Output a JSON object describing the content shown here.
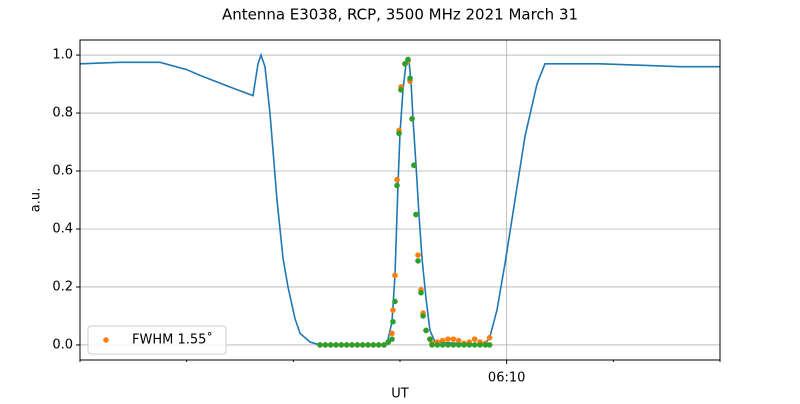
{
  "chart_data": {
    "type": "line",
    "title": "Antenna E3038, RCP, 3500 MHz 2021 March 31",
    "x_label": "UT",
    "y_label": "a.u.",
    "xlim": [
      6,
      12
    ],
    "ylim": [
      -0.052,
      1.052
    ],
    "xticks": [
      {
        "value": 10,
        "label": "06:10"
      }
    ],
    "xminorticks": [
      6,
      7,
      8,
      9,
      11,
      12
    ],
    "yticks": [
      {
        "value": 0,
        "label": "0.0"
      },
      0.2,
      0.4,
      0.6,
      0.8,
      {
        "value": 1,
        "label": "1.0"
      }
    ],
    "grid": true,
    "legend": "lower left",
    "series": [
      {
        "type": "line",
        "color": "#1f77b4",
        "x": [
          6.0,
          6.375,
          6.75,
          7.0,
          7.125,
          7.406,
          7.622,
          7.669,
          7.697,
          7.734,
          7.781,
          7.847,
          7.903,
          7.95,
          8.016,
          8.063,
          8.156,
          8.25,
          8.859,
          8.888,
          8.925,
          8.953,
          8.981,
          9.0,
          9.028,
          9.056,
          9.084,
          9.103,
          9.122,
          9.15,
          9.178,
          9.206,
          9.244,
          9.281,
          9.328,
          9.797,
          9.844,
          9.909,
          9.984,
          10.078,
          10.172,
          10.284,
          10.359,
          10.5,
          10.875,
          11.25,
          11.625,
          12.0
        ],
        "values": [
          0.97,
          0.975,
          0.975,
          0.95,
          0.93,
          0.89,
          0.86,
          0.97,
          1.0,
          0.96,
          0.8,
          0.5,
          0.3,
          0.2,
          0.09,
          0.04,
          0.01,
          0.0,
          0.0,
          0.02,
          0.08,
          0.24,
          0.55,
          0.73,
          0.88,
          0.97,
          0.98,
          0.91,
          0.78,
          0.62,
          0.45,
          0.3,
          0.16,
          0.05,
          0.01,
          0.0,
          0.03,
          0.12,
          0.28,
          0.5,
          0.72,
          0.9,
          0.97,
          0.97,
          0.97,
          0.965,
          0.96,
          0.96
        ]
      },
      {
        "type": "scatter",
        "name": "FWHM 1.55˚",
        "color": "#ff7f0e",
        "x": [
          8.25,
          8.3,
          8.35,
          8.4,
          8.45,
          8.5,
          8.55,
          8.6,
          8.65,
          8.7,
          8.75,
          8.8,
          8.85,
          8.89,
          8.925,
          8.934,
          8.953,
          8.972,
          8.991,
          9.009,
          9.047,
          9.075,
          9.094,
          9.113,
          9.131,
          9.15,
          9.169,
          9.197,
          9.216,
          9.244,
          9.281,
          9.3,
          9.35,
          9.4,
          9.45,
          9.5,
          9.55,
          9.6,
          9.65,
          9.7,
          9.75,
          9.8,
          9.84
        ],
        "values": [
          0,
          0,
          0,
          0,
          0,
          0,
          0,
          0,
          0,
          0,
          0,
          0,
          0,
          0.01,
          0.04,
          0.12,
          0.24,
          0.57,
          0.74,
          0.89,
          0.97,
          0.98,
          0.91,
          0.78,
          0.62,
          0.45,
          0.31,
          0.19,
          0.11,
          0.05,
          0.02,
          0.005,
          0.01,
          0.015,
          0.02,
          0.02,
          0.015,
          0.005,
          0.01,
          0.02,
          0.01,
          0.005,
          0.025
        ]
      },
      {
        "type": "scatter",
        "color": "#2ca02c",
        "x": [
          8.25,
          8.3,
          8.35,
          8.4,
          8.45,
          8.5,
          8.55,
          8.6,
          8.65,
          8.7,
          8.75,
          8.8,
          8.85,
          8.89,
          8.925,
          8.934,
          8.953,
          8.972,
          8.991,
          9.009,
          9.047,
          9.075,
          9.094,
          9.113,
          9.131,
          9.15,
          9.169,
          9.197,
          9.216,
          9.244,
          9.281,
          9.3,
          9.35,
          9.4,
          9.45,
          9.5,
          9.55,
          9.6,
          9.65,
          9.7,
          9.75,
          9.8,
          9.84
        ],
        "values": [
          0,
          0,
          0,
          0,
          0,
          0,
          0,
          0,
          0,
          0,
          0,
          0,
          0,
          0.01,
          0.02,
          0.08,
          0.15,
          0.55,
          0.73,
          0.88,
          0.97,
          0.985,
          0.92,
          0.78,
          0.62,
          0.45,
          0.29,
          0.18,
          0.1,
          0.05,
          0.02,
          0,
          0,
          0,
          0,
          0,
          0,
          0,
          0,
          0,
          0,
          0,
          0
        ]
      }
    ]
  }
}
